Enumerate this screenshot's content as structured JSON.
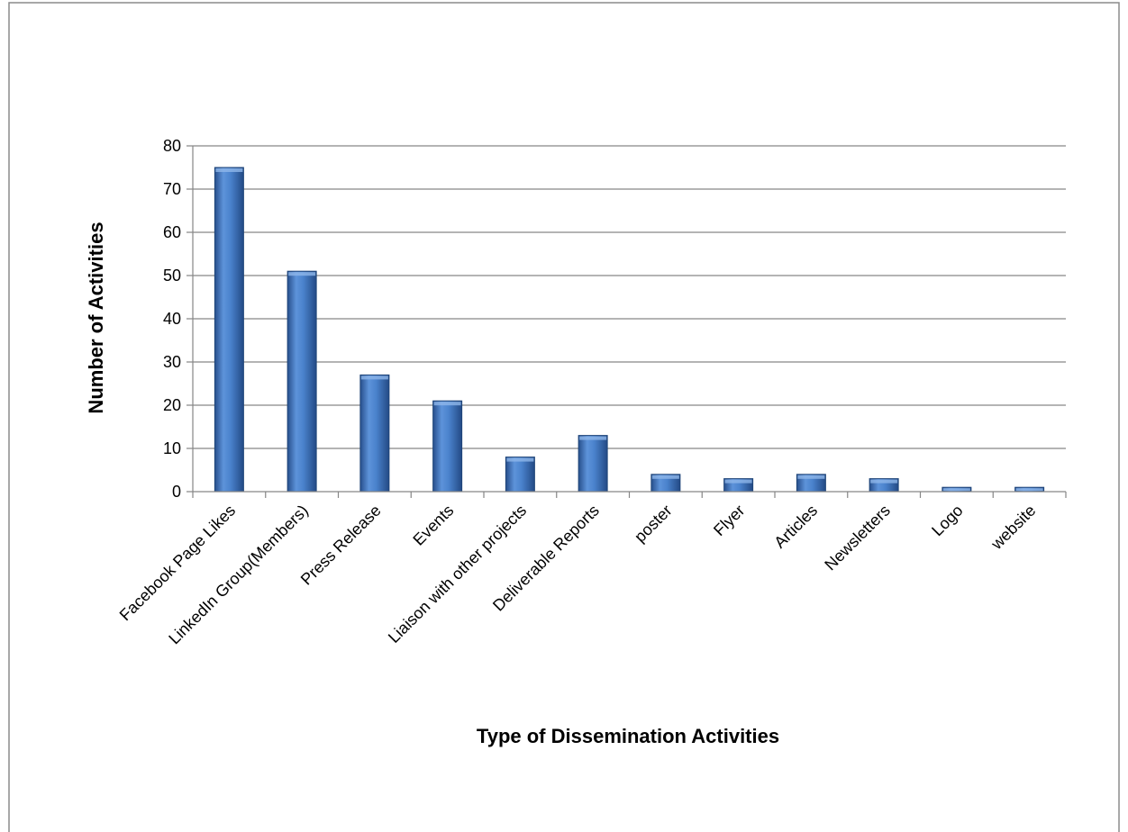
{
  "chart_data": {
    "type": "bar",
    "title": "",
    "xlabel": "Type of Dissemination Activities",
    "ylabel": "Number of Activities",
    "ylim": [
      0,
      80
    ],
    "yticks": [
      0,
      10,
      20,
      30,
      40,
      50,
      60,
      70,
      80
    ],
    "grid": true,
    "legend": "none",
    "bar_color": "#3f78c4",
    "categories": [
      "Facebook Page Likes",
      "LinkedIn Group(Members)",
      "Press Release",
      "Events",
      "Liaison with other projects",
      "Deliverable Reports",
      "poster",
      "Flyer",
      "Articles",
      "Newsletters",
      "Logo",
      "website"
    ],
    "values": [
      75,
      51,
      27,
      21,
      8,
      13,
      4,
      3,
      4,
      3,
      1,
      1
    ]
  }
}
